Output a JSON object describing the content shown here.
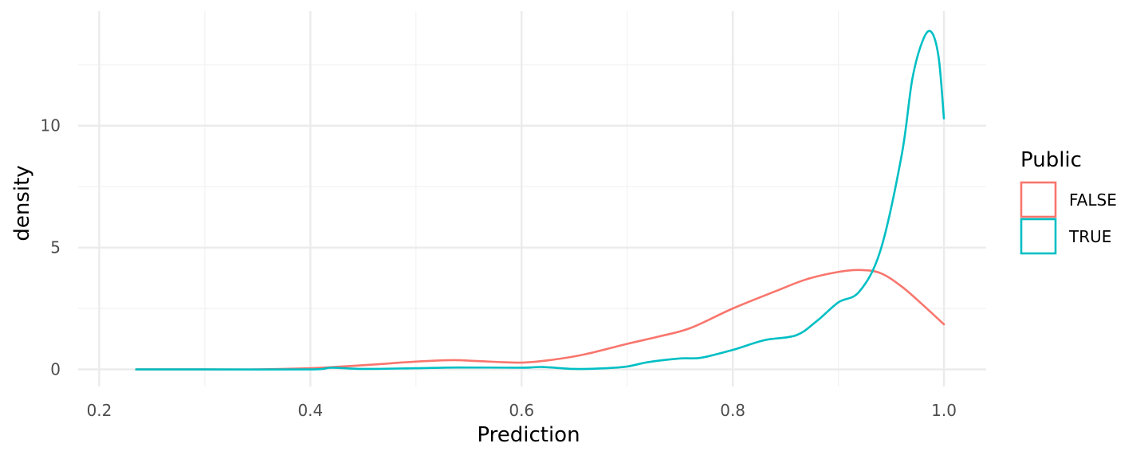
{
  "chart_data": {
    "type": "line",
    "xlabel": "Prediction",
    "ylabel": "density",
    "xlim": [
      0.18,
      1.04
    ],
    "ylim": [
      -0.7,
      14.7
    ],
    "x_ticks": [
      0.2,
      0.4,
      0.6,
      0.8,
      1.0
    ],
    "x_tick_labels": [
      "0.2",
      "0.4",
      "0.6",
      "0.8",
      "1.0"
    ],
    "y_ticks": [
      0,
      5,
      10
    ],
    "y_tick_labels": [
      "0",
      "5",
      "10"
    ],
    "grid": true,
    "legend": {
      "title": "Public",
      "position": "right"
    },
    "series": [
      {
        "name": "FALSE",
        "color": "#F8766D",
        "x": [
          0.235,
          0.26,
          0.3,
          0.35,
          0.4,
          0.43,
          0.46,
          0.5,
          0.535,
          0.56,
          0.6,
          0.63,
          0.66,
          0.7,
          0.73,
          0.76,
          0.8,
          0.84,
          0.87,
          0.9,
          0.92,
          0.94,
          0.96,
          0.98,
          1.0
        ],
        "y": [
          0.0,
          0.0,
          0.0,
          0.0,
          0.05,
          0.12,
          0.2,
          0.32,
          0.38,
          0.34,
          0.28,
          0.4,
          0.62,
          1.05,
          1.35,
          1.7,
          2.5,
          3.2,
          3.7,
          4.0,
          4.08,
          3.95,
          3.4,
          2.65,
          1.85
        ]
      },
      {
        "name": "TRUE",
        "color": "#00BFC4",
        "x": [
          0.235,
          0.3,
          0.4,
          0.42,
          0.45,
          0.5,
          0.54,
          0.6,
          0.62,
          0.65,
          0.68,
          0.7,
          0.72,
          0.75,
          0.77,
          0.8,
          0.83,
          0.86,
          0.88,
          0.9,
          0.92,
          0.94,
          0.96,
          0.97,
          0.98,
          0.988,
          0.995,
          1.0
        ],
        "y": [
          0.0,
          0.0,
          0.0,
          0.07,
          0.02,
          0.05,
          0.08,
          0.07,
          0.1,
          0.02,
          0.05,
          0.12,
          0.3,
          0.45,
          0.48,
          0.8,
          1.2,
          1.4,
          2.0,
          2.75,
          3.2,
          4.9,
          8.8,
          11.9,
          13.5,
          13.85,
          12.8,
          10.3
        ]
      }
    ]
  }
}
